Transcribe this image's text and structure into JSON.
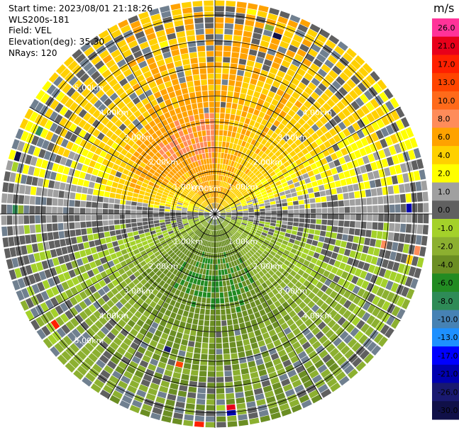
{
  "header": {
    "start_time": "Start time: 2023/08/01 21:18:26",
    "instrument": "WLS200s-181",
    "field": "Field: VEL",
    "elevation": "Elevation(deg): 35.30",
    "nrays": "NRays: 120"
  },
  "chart_data": {
    "type": "heatmap",
    "projection": "polar PPI",
    "field": "VEL",
    "units": "m/s",
    "nrays": 120,
    "elevation_deg": 35.3,
    "range_rings_km": [
      1.0,
      2.0,
      3.0,
      4.0,
      5.0
    ],
    "ring_labels": [
      "1.00km",
      "2.00km",
      "3.00km",
      "4.00km",
      "5.00km"
    ],
    "center_label": "0.00km",
    "spokes": 12,
    "colorbar": {
      "unit_label": "m/s",
      "ticks": [
        "26.0",
        "21.0",
        "17.0",
        "13.0",
        "10.0",
        "8.0",
        "6.0",
        "4.0",
        "2.0",
        "1.0",
        "0.0",
        "-1.0",
        "-2.0",
        "-4.0",
        "-6.0",
        "-8.0",
        "-10.0",
        "-13.0",
        "-17.0",
        "-21.0",
        "-26.0",
        "-30.0"
      ],
      "colors": [
        "#ff3399",
        "#e8001a",
        "#ff2000",
        "#ff4500",
        "#ff6a1a",
        "#ff8c5a",
        "#ffa200",
        "#ffd000",
        "#ffff00",
        "#a0a0a0",
        "#606060",
        "#a4d12a",
        "#8cb030",
        "#6b8e23",
        "#228b22",
        "#2e8b57",
        "#4682b4",
        "#1e90ff",
        "#0000ff",
        "#0000b0",
        "#191970",
        "#101048"
      ],
      "colors_note": ""
    },
    "pattern": {
      "north_half": "mostly positive (yellow/orange) velocities, orange-red core toward NW at ~1.5-2.5 km",
      "south_half": "mostly negative (green) velocities, dark green core toward S/SE at ~1-2.5 km",
      "outer_ring": "speckled grey (near zero) and scattered extreme values"
    }
  }
}
